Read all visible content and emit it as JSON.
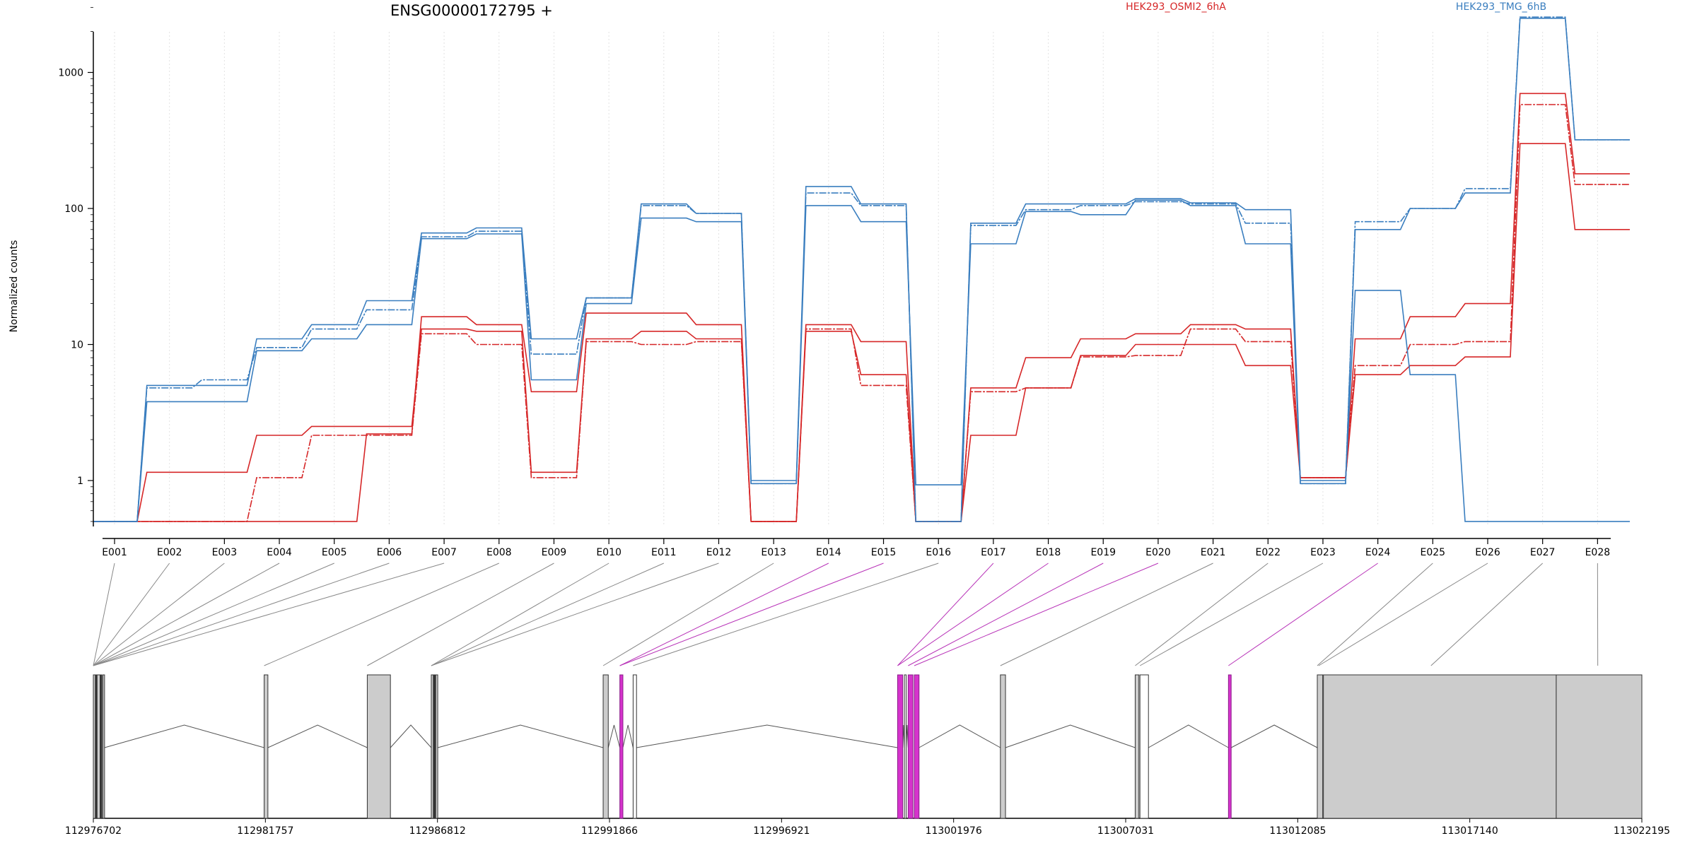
{
  "chart_data": {
    "type": "line",
    "title": "ENSG00000172795 +",
    "ylabel": "Normalized counts",
    "y_scale": "log",
    "y_ticks": [
      1,
      10,
      100,
      1000
    ],
    "y_tick_labels": [
      "1",
      "10",
      "100",
      "1000"
    ],
    "ylim": [
      0.5,
      3500
    ],
    "grid": "vertical dotted lines at exon positions",
    "legend_placement": "top",
    "categories": [
      "E001",
      "E002",
      "E003",
      "E004",
      "E005",
      "E006",
      "E007",
      "E008",
      "E009",
      "E010",
      "E011",
      "E012",
      "E013",
      "E014",
      "E015",
      "E016",
      "E017",
      "E018",
      "E019",
      "E020",
      "E021",
      "E022",
      "E023",
      "E024",
      "E025",
      "E026",
      "E027",
      "E028"
    ],
    "series": [
      {
        "name": "HEK293_OSMI2_6hA",
        "color": "#d62728",
        "replicates": [
          [
            0.5,
            1.15,
            1.15,
            2.15,
            2.5,
            2.5,
            13,
            12.5,
            1.15,
            11,
            12.5,
            11,
            0.5,
            12.5,
            6,
            0.5,
            2.15,
            4.8,
            8.3,
            10,
            10,
            7,
            1.05,
            6,
            7,
            8.1,
            300,
            70
          ],
          [
            0.5,
            0.5,
            0.5,
            1.05,
            2.15,
            2.15,
            12,
            10,
            1.05,
            10.5,
            10,
            10.5,
            0.5,
            13,
            5,
            0.5,
            4.5,
            4.8,
            8.1,
            8.3,
            13,
            10.5,
            1.05,
            7,
            10,
            10.5,
            580,
            150
          ],
          [
            0.5,
            0.5,
            0.5,
            0.5,
            0.5,
            2.2,
            16,
            14,
            4.5,
            17,
            17,
            14,
            0.5,
            14,
            10.5,
            0.5,
            4.8,
            8,
            11,
            12,
            14,
            13,
            1.05,
            11,
            16,
            20,
            700,
            180
          ]
        ]
      },
      {
        "name": "HEK293_TMG_6hB",
        "color": "#3a7ebf",
        "replicates": [
          [
            0.5,
            3.8,
            3.8,
            9,
            11,
            14,
            60,
            65,
            5.5,
            20,
            85,
            80,
            0.95,
            105,
            80,
            0.93,
            55,
            95,
            90,
            115,
            105,
            55,
            0.95,
            70,
            100,
            130,
            2500,
            320
          ],
          [
            0.5,
            4.8,
            5.5,
            9.5,
            13,
            18,
            62,
            68,
            8.5,
            22,
            105,
            92,
            0.95,
            130,
            105,
            0.5,
            75,
            98,
            105,
            112,
            108,
            78,
            0.95,
            80,
            100,
            140,
            2550,
            320
          ],
          [
            0.5,
            5,
            5,
            11,
            14,
            21,
            66,
            72,
            11,
            22,
            108,
            92,
            1,
            145,
            108,
            0.5,
            78,
            108,
            108,
            118,
            110,
            98,
            1,
            25,
            6,
            0.5,
            0.5,
            0.5
          ]
        ]
      }
    ],
    "highlighted_exons": [
      "E014",
      "E015",
      "E016",
      "E017",
      "E018",
      "E019",
      "E020",
      "E024"
    ],
    "genomic_axis": {
      "ticks": [
        112976702,
        112981757,
        112986812,
        112991866,
        112996921,
        113001976,
        113007031,
        113012085,
        113017140,
        113022195
      ],
      "labels": [
        "112976702",
        "112981757",
        "112986812",
        "112991866",
        "112996921",
        "113001976",
        "113007031",
        "113012085",
        "113017140",
        "113022195"
      ],
      "range": [
        112976702,
        113022195
      ]
    },
    "gene_model": {
      "exons": [
        {
          "start": 112976702,
          "end": 112976950,
          "fill": "#cccccc",
          "highlight": false
        },
        {
          "start": 112976980,
          "end": 112977030,
          "fill": "#cccccc",
          "highlight": false
        },
        {
          "start": 112976760,
          "end": 112976800,
          "fill": "#333333",
          "highlight": false
        },
        {
          "start": 112976900,
          "end": 112976930,
          "fill": "#333333",
          "highlight": false
        },
        {
          "start": 112981720,
          "end": 112981830,
          "fill": "#cccccc",
          "highlight": false
        },
        {
          "start": 112984750,
          "end": 112985430,
          "fill": "#cccccc",
          "highlight": false
        },
        {
          "start": 112986630,
          "end": 112986820,
          "fill": "#cccccc",
          "highlight": false
        },
        {
          "start": 112986690,
          "end": 112986760,
          "fill": "#333333",
          "highlight": false
        },
        {
          "start": 112991680,
          "end": 112991830,
          "fill": "#cccccc",
          "highlight": false
        },
        {
          "start": 112992170,
          "end": 112992260,
          "fill": "#d633cc",
          "highlight": true
        },
        {
          "start": 112992560,
          "end": 112992660,
          "fill": "#ffffff",
          "highlight": false
        },
        {
          "start": 113000330,
          "end": 113000480,
          "fill": "#d633cc",
          "highlight": true
        },
        {
          "start": 113000530,
          "end": 113000580,
          "fill": "#ffffff",
          "highlight": false
        },
        {
          "start": 113000640,
          "end": 113000780,
          "fill": "#d633cc",
          "highlight": true
        },
        {
          "start": 113000820,
          "end": 113000960,
          "fill": "#d633cc",
          "highlight": true
        },
        {
          "start": 113003350,
          "end": 113003500,
          "fill": "#cccccc",
          "highlight": false
        },
        {
          "start": 113007310,
          "end": 113007420,
          "fill": "#cccccc",
          "highlight": false
        },
        {
          "start": 113007450,
          "end": 113007700,
          "fill": "#ffffff",
          "highlight": false
        },
        {
          "start": 113010050,
          "end": 113010130,
          "fill": "#d633cc",
          "highlight": true
        },
        {
          "start": 113012660,
          "end": 113012820,
          "fill": "#cccccc",
          "highlight": false
        },
        {
          "start": 113012840,
          "end": 113019680,
          "fill": "#cccccc",
          "highlight": false
        },
        {
          "start": 113019680,
          "end": 113022195,
          "fill": "#cccccc",
          "highlight": false
        }
      ],
      "introns": [
        [
          112977030,
          112981720
        ],
        [
          112981830,
          112984750
        ],
        [
          112985430,
          112986630
        ],
        [
          112986820,
          112991680
        ],
        [
          112991830,
          112992170
        ],
        [
          112992260,
          112992560
        ],
        [
          112992660,
          113000330
        ],
        [
          113000480,
          113000530
        ],
        [
          113000580,
          113000640
        ],
        [
          113000960,
          113003350
        ],
        [
          113003500,
          113007310
        ],
        [
          113007700,
          113010050
        ],
        [
          113010130,
          113012660
        ]
      ],
      "connectors": [
        {
          "exon": "E001",
          "pos": 112976702,
          "highlight": false
        },
        {
          "exon": "E002",
          "pos": 112976702,
          "highlight": false
        },
        {
          "exon": "E003",
          "pos": 112976702,
          "highlight": false
        },
        {
          "exon": "E004",
          "pos": 112976702,
          "highlight": false
        },
        {
          "exon": "E005",
          "pos": 112976702,
          "highlight": false
        },
        {
          "exon": "E006",
          "pos": 112976702,
          "highlight": false
        },
        {
          "exon": "E007",
          "pos": 112976702,
          "highlight": false
        },
        {
          "exon": "E008",
          "pos": 112981720,
          "highlight": false
        },
        {
          "exon": "E009",
          "pos": 112984750,
          "highlight": false
        },
        {
          "exon": "E010",
          "pos": 112986630,
          "highlight": false
        },
        {
          "exon": "E011",
          "pos": 112986630,
          "highlight": false
        },
        {
          "exon": "E012",
          "pos": 112986630,
          "highlight": false
        },
        {
          "exon": "E013",
          "pos": 112991680,
          "highlight": false
        },
        {
          "exon": "E014",
          "pos": 112992170,
          "highlight": true
        },
        {
          "exon": "E015",
          "pos": 112992170,
          "highlight": true
        },
        {
          "exon": "E016",
          "pos": 112992560,
          "highlight": false
        },
        {
          "exon": "E017",
          "pos": 113000330,
          "highlight": true
        },
        {
          "exon": "E018",
          "pos": 113000330,
          "highlight": true
        },
        {
          "exon": "E019",
          "pos": 113000640,
          "highlight": true
        },
        {
          "exon": "E020",
          "pos": 113000820,
          "highlight": true
        },
        {
          "exon": "E021",
          "pos": 113003350,
          "highlight": false
        },
        {
          "exon": "E022",
          "pos": 113007310,
          "highlight": false
        },
        {
          "exon": "E023",
          "pos": 113007450,
          "highlight": false
        },
        {
          "exon": "E024",
          "pos": 113010050,
          "highlight": true
        },
        {
          "exon": "E025",
          "pos": 113012660,
          "highlight": false
        },
        {
          "exon": "E026",
          "pos": 113012700,
          "highlight": false
        },
        {
          "exon": "E027",
          "pos": 113016000,
          "highlight": false
        },
        {
          "exon": "E028",
          "pos": 113020900,
          "highlight": false
        }
      ]
    }
  }
}
